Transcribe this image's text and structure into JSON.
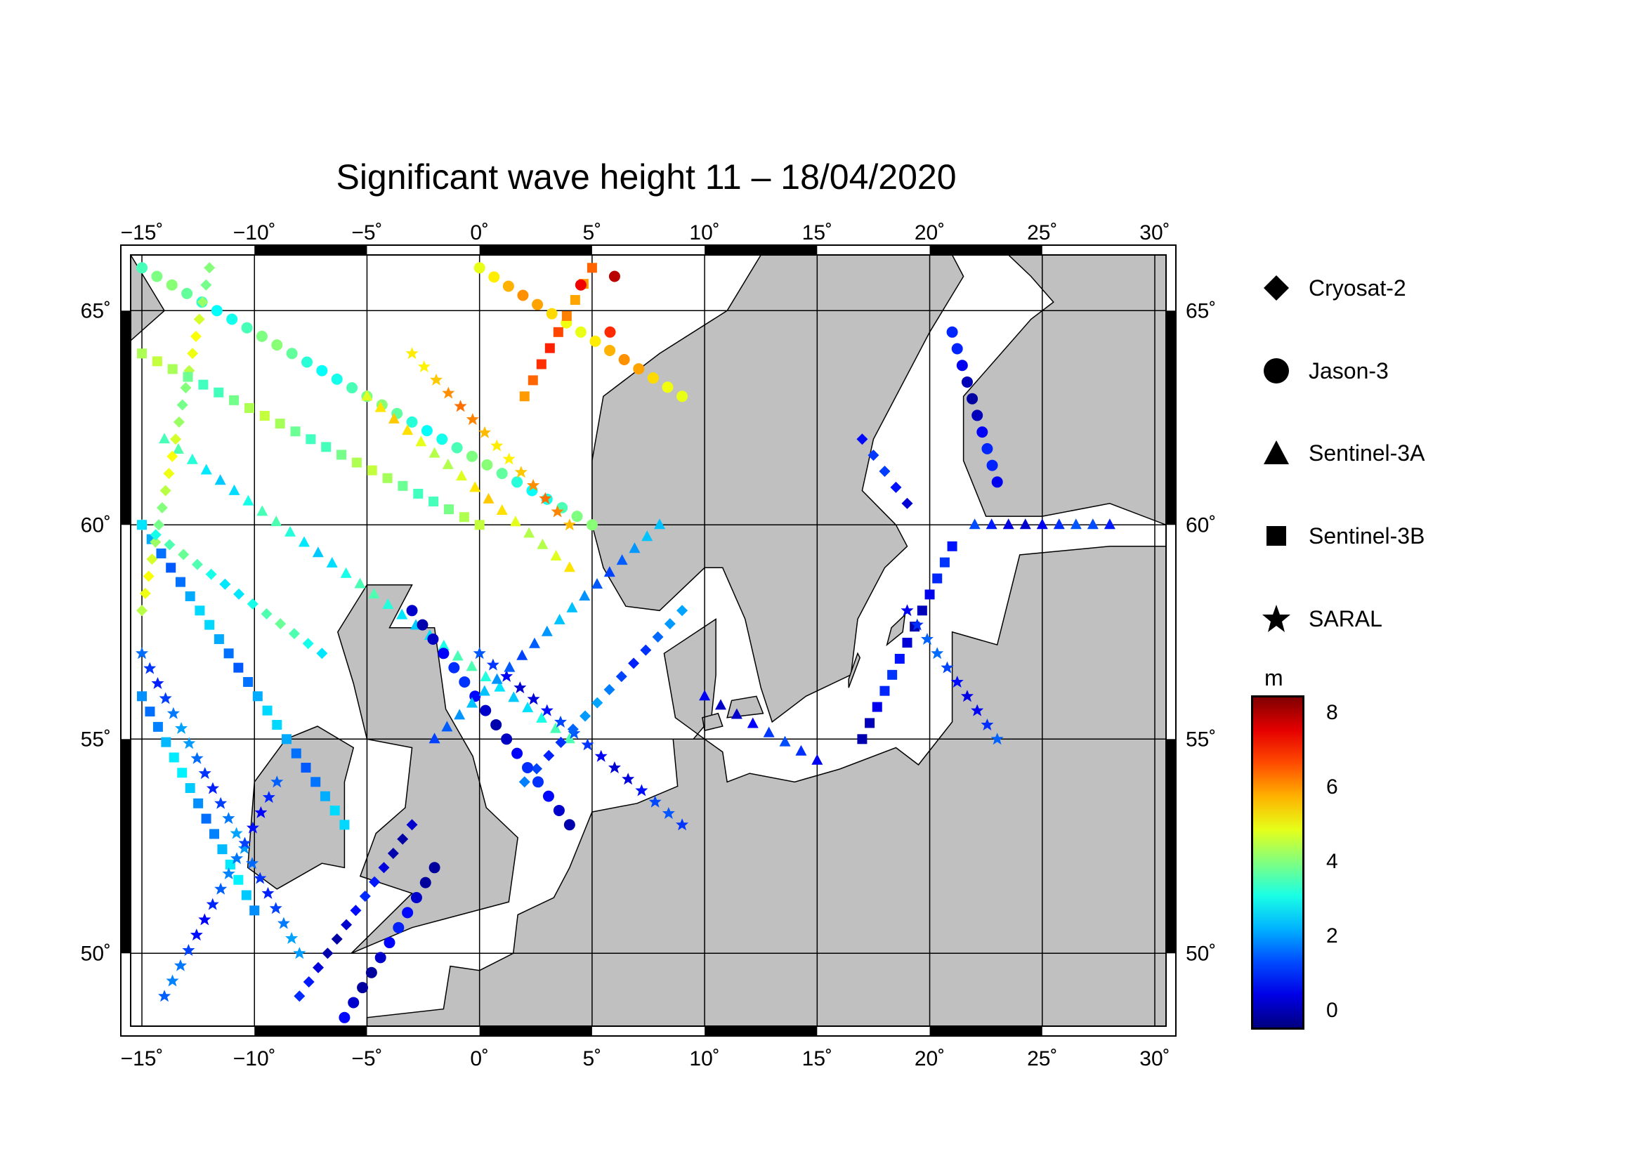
{
  "title": "Significant wave height 11 – 18/04/2020",
  "colors": {
    "land": "#c0c0c0",
    "sea": "#ffffff",
    "frame": "#000000",
    "grid": "#000000"
  },
  "map": {
    "lon_range": [
      -15.5,
      30.5
    ],
    "lat_range": [
      48.3,
      66.3
    ],
    "lon_ticks": [
      "−15˚",
      "−10˚",
      "−5˚",
      "0˚",
      "5˚",
      "10˚",
      "15˚",
      "20˚",
      "25˚",
      "30˚"
    ],
    "lat_ticks": [
      "50˚",
      "55˚",
      "60˚",
      "65˚"
    ],
    "tracks": [
      {
        "from": [
          -15,
          66
        ],
        "to": [
          5,
          60
        ],
        "value": 3.5
      },
      {
        "from": [
          -14,
          62
        ],
        "to": [
          4,
          55
        ],
        "value": 3.0
      },
      {
        "from": [
          -15,
          60
        ],
        "to": [
          -6,
          53
        ],
        "value": 2.0
      },
      {
        "from": [
          -15,
          57
        ],
        "to": [
          -8,
          50
        ],
        "value": 1.5
      },
      {
        "from": [
          -12,
          66
        ],
        "to": [
          -15,
          58
        ],
        "value": 4.5
      },
      {
        "from": [
          0,
          66
        ],
        "to": [
          9,
          63
        ],
        "value": 5.5
      },
      {
        "from": [
          -5,
          63
        ],
        "to": [
          4,
          59
        ],
        "value": 5.0
      },
      {
        "from": [
          -15,
          64
        ],
        "to": [
          0,
          60
        ],
        "value": 4.0
      },
      {
        "from": [
          0,
          57
        ],
        "to": [
          9,
          53
        ],
        "value": 0.8
      },
      {
        "from": [
          2,
          54
        ],
        "to": [
          9,
          58
        ],
        "value": 1.5
      },
      {
        "from": [
          -3,
          58
        ],
        "to": [
          4,
          53
        ],
        "value": 0.5
      },
      {
        "from": [
          -2,
          55
        ],
        "to": [
          8,
          60
        ],
        "value": 1.8
      },
      {
        "from": [
          -10,
          51
        ],
        "to": [
          -15,
          56
        ],
        "value": 2.2
      },
      {
        "from": [
          -14,
          49
        ],
        "to": [
          -9,
          54
        ],
        "value": 1.2
      },
      {
        "from": [
          -8,
          49
        ],
        "to": [
          -3,
          53
        ],
        "value": 0.4
      },
      {
        "from": [
          -6,
          48.5
        ],
        "to": [
          -2,
          52
        ],
        "value": 0.3
      },
      {
        "from": [
          10,
          56
        ],
        "to": [
          15,
          54.5
        ],
        "value": 0.7
      },
      {
        "from": [
          17,
          55
        ],
        "to": [
          21,
          59.5
        ],
        "value": 0.5
      },
      {
        "from": [
          19,
          58
        ],
        "to": [
          23,
          55
        ],
        "value": 1.0
      },
      {
        "from": [
          17,
          62
        ],
        "to": [
          19,
          60.5
        ],
        "value": 0.6
      },
      {
        "from": [
          21,
          64.5
        ],
        "to": [
          23,
          61
        ],
        "value": 0.4
      },
      {
        "from": [
          22,
          60
        ],
        "to": [
          28,
          60
        ],
        "value": 0.8
      },
      {
        "from": [
          5,
          66
        ],
        "to": [
          2,
          63
        ],
        "value": 6.5
      },
      {
        "from": [
          -3,
          64
        ],
        "to": [
          4,
          60
        ],
        "value": 5.8
      },
      {
        "from": [
          -7,
          57
        ],
        "to": [
          -15,
          60
        ],
        "value": 3.2
      }
    ],
    "hot_spots": [
      {
        "lon": 6,
        "lat": 65.8,
        "value": 8.0
      },
      {
        "lon": 4.5,
        "lat": 65.6,
        "value": 7.5
      },
      {
        "lon": 5.8,
        "lat": 64.5,
        "value": 7.0
      }
    ]
  },
  "legend": {
    "items": [
      {
        "label": "Cryosat-2",
        "symbol": "diamond"
      },
      {
        "label": "Jason-3",
        "symbol": "circle"
      },
      {
        "label": "Sentinel-3A",
        "symbol": "triangle"
      },
      {
        "label": "Sentinel-3B",
        "symbol": "square"
      },
      {
        "label": "SARAL",
        "symbol": "star"
      }
    ]
  },
  "colorbar": {
    "unit": "m",
    "ticks": [
      "8",
      "6",
      "4",
      "2",
      "0"
    ],
    "range": [
      -0.5,
      8.5
    ]
  }
}
